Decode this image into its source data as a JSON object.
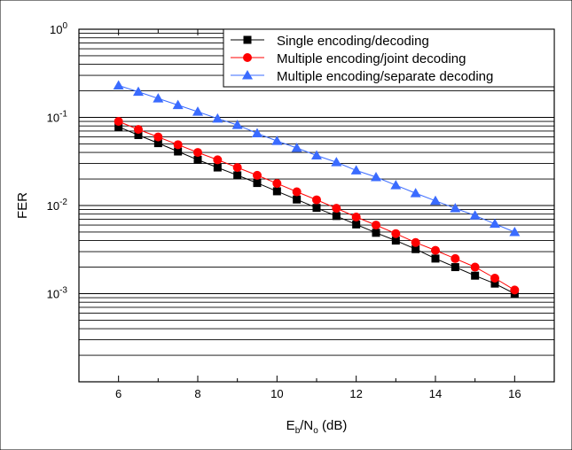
{
  "chart_data": {
    "type": "line",
    "xlabel": {
      "main": "E",
      "sub1": "b",
      "mid": "/N",
      "sub2": "o",
      "tail": " (dB)"
    },
    "ylabel": "FER",
    "xlim": [
      5,
      17
    ],
    "ylim": [
      0.0001,
      1
    ],
    "yscale": "log",
    "x_ticks": [
      "6",
      "8",
      "10",
      "12",
      "14",
      "16"
    ],
    "y_ticks": [
      {
        "base": "10",
        "exp": "0",
        "value": 1
      },
      {
        "base": "10",
        "exp": "-1",
        "value": 0.1
      },
      {
        "base": "10",
        "exp": "-2",
        "value": 0.01
      },
      {
        "base": "10",
        "exp": "-3",
        "value": 0.001
      }
    ],
    "grid": "horizontal minor and major lines",
    "legend_position": "top-right",
    "x": [
      6,
      6.5,
      7,
      7.5,
      8,
      8.5,
      9,
      9.5,
      10,
      10.5,
      11,
      11.5,
      12,
      12.5,
      13,
      13.5,
      14,
      14.5,
      15,
      15.5,
      16
    ],
    "series": [
      {
        "name": "Single encoding/decoding",
        "color": "#000000",
        "marker": "square",
        "values": [
          0.078,
          0.063,
          0.051,
          0.041,
          0.033,
          0.027,
          0.022,
          0.018,
          0.0145,
          0.0117,
          0.0094,
          0.0076,
          0.0061,
          0.0049,
          0.004,
          0.0032,
          0.0025,
          0.002,
          0.0016,
          0.0013,
          0.001
        ]
      },
      {
        "name": "Multiple encoding/joint decoding",
        "color": "#ff0000",
        "marker": "circle",
        "values": [
          0.09,
          0.073,
          0.06,
          0.049,
          0.04,
          0.033,
          0.027,
          0.022,
          0.0178,
          0.0143,
          0.0116,
          0.0093,
          0.0074,
          0.006,
          0.0048,
          0.0038,
          0.0031,
          0.0025,
          0.002,
          0.0015,
          0.0011
        ]
      },
      {
        "name": "Multiple encoding/separate decoding",
        "color": "#3a6bff",
        "marker": "triangle",
        "values": [
          0.23,
          0.195,
          0.164,
          0.138,
          0.116,
          0.097,
          0.082,
          0.066,
          0.054,
          0.045,
          0.037,
          0.031,
          0.025,
          0.021,
          0.017,
          0.0138,
          0.0113,
          0.0093,
          0.0077,
          0.0062,
          0.005
        ]
      }
    ]
  }
}
